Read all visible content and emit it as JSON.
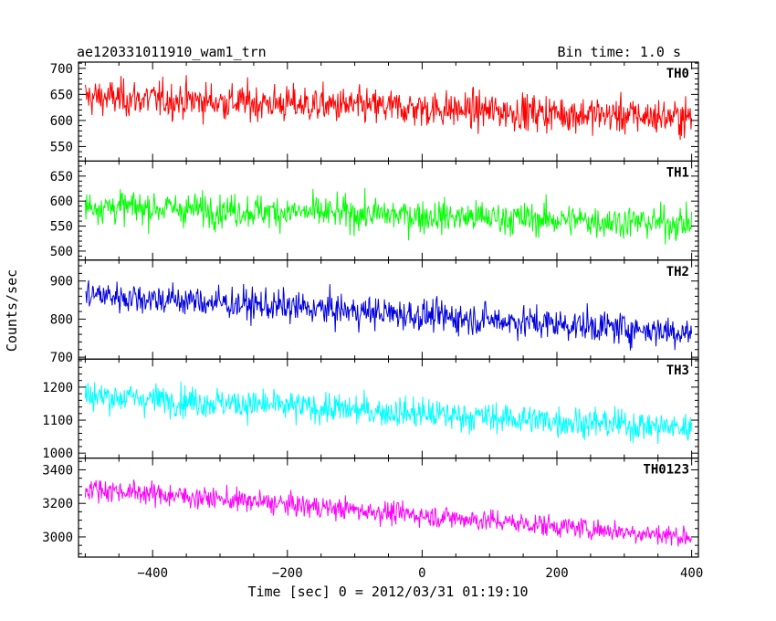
{
  "header": {
    "title": "ae120331011910_wam1_trn",
    "bin_time": "Bin time: 1.0 s"
  },
  "axes": {
    "xlabel": "Time [sec] 0 = 2012/03/31 01:19:10",
    "ylabel": "Counts/sec"
  },
  "chart_data": {
    "type": "line",
    "x_range": [
      -510,
      410
    ],
    "x_step": 1,
    "x_ticks": [
      -400,
      -200,
      0,
      200,
      400
    ],
    "x_tick_labels": [
      "−400",
      "−200",
      "0",
      "200",
      "400"
    ],
    "x_minor_step": 50,
    "series": [
      {
        "name": "TH0",
        "color": "#ff0000",
        "ylim": [
          522,
          712
        ],
        "ticks": [
          550,
          600,
          650,
          700
        ],
        "minor_step": 10,
        "x_start": -500,
        "x_end": 400,
        "start_mean": 645,
        "end_mean": 605,
        "noise": 32
      },
      {
        "name": "TH1",
        "color": "#00ff00",
        "ylim": [
          482,
          680
        ],
        "ticks": [
          500,
          550,
          600,
          650
        ],
        "minor_step": 10,
        "x_start": -500,
        "x_end": 400,
        "start_mean": 590,
        "end_mean": 555,
        "noise": 30
      },
      {
        "name": "TH2",
        "color": "#0000dd",
        "ylim": [
          695,
          955
        ],
        "ticks": [
          700,
          800,
          900
        ],
        "minor_step": 20,
        "x_start": -500,
        "x_end": 400,
        "start_mean": 865,
        "end_mean": 765,
        "noise": 38
      },
      {
        "name": "TH3",
        "color": "#00ffff",
        "ylim": [
          985,
          1285
        ],
        "ticks": [
          1000,
          1100,
          1200
        ],
        "minor_step": 20,
        "x_start": -500,
        "x_end": 400,
        "start_mean": 1175,
        "end_mean": 1075,
        "noise": 42
      },
      {
        "name": "TH0123",
        "color": "#ff00ff",
        "ylim": [
          2880,
          3470
        ],
        "ticks": [
          3000,
          3200,
          3400
        ],
        "minor_step": 50,
        "x_start": -500,
        "x_end": 400,
        "start_mean": 3290,
        "end_mean": 3000,
        "noise": 60
      }
    ]
  }
}
